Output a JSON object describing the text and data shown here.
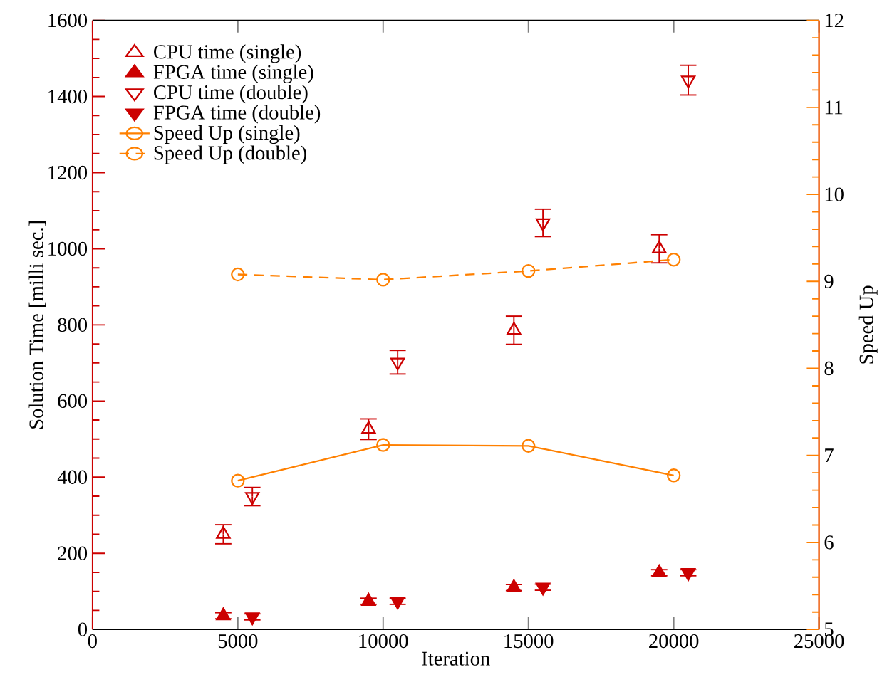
{
  "chart_data": {
    "type": "scatter",
    "xlabel": "Iteration",
    "ylabel": "Solution Time [milli sec.]",
    "y2label": "Speed Up",
    "xlim": [
      0,
      25000
    ],
    "xticks": [
      0,
      5000,
      10000,
      15000,
      20000,
      25000
    ],
    "ylim": [
      0,
      1600
    ],
    "yticks": [
      0,
      200,
      400,
      600,
      800,
      1000,
      1200,
      1400,
      1600
    ],
    "y2lim": [
      5,
      12
    ],
    "y2ticks": [
      5,
      6,
      7,
      8,
      9,
      10,
      11,
      12
    ],
    "legend": "top left",
    "series": [
      {
        "name": "CPU time (single)",
        "marker": "triangle-open",
        "color": "#cc0000",
        "x": [
          4500,
          9500,
          14500,
          19500
        ],
        "values": [
          250,
          526,
          786,
          1000
        ],
        "errors": [
          25,
          27,
          37,
          37
        ]
      },
      {
        "name": "FPGA time (single)",
        "marker": "triangle",
        "color": "#cc0000",
        "x": [
          4500,
          9500,
          14500,
          19500
        ],
        "values": [
          36,
          74,
          110,
          149
        ],
        "errors": [
          8,
          8,
          8,
          8
        ]
      },
      {
        "name": "CPU time (double)",
        "marker": "triangle-down-open",
        "color": "#cc0000",
        "x": [
          5500,
          10500,
          15500,
          20500
        ],
        "values": [
          349,
          702,
          1068,
          1443
        ],
        "errors": [
          24,
          31,
          36,
          39
        ]
      },
      {
        "name": "FPGA time (double)",
        "marker": "triangle-down",
        "color": "#cc0000",
        "x": [
          5500,
          10500,
          15500,
          20500
        ],
        "values": [
          33,
          74,
          111,
          149
        ],
        "errors": [
          8,
          8,
          8,
          8
        ]
      },
      {
        "name": "Speed Up (single)",
        "type": "line",
        "axis": "y2",
        "marker": "circle-open",
        "line_style": "solid",
        "color": "#ff8000",
        "x": [
          5000,
          10000,
          15000,
          20000
        ],
        "values": [
          6.71,
          7.12,
          7.11,
          6.77
        ]
      },
      {
        "name": "Speed Up (double)",
        "type": "line",
        "axis": "y2",
        "marker": "circle-open",
        "line_style": "dashed",
        "color": "#ff8000",
        "x": [
          5000,
          10000,
          15000,
          20000
        ],
        "values": [
          9.08,
          9.02,
          9.12,
          9.25
        ]
      }
    ]
  }
}
